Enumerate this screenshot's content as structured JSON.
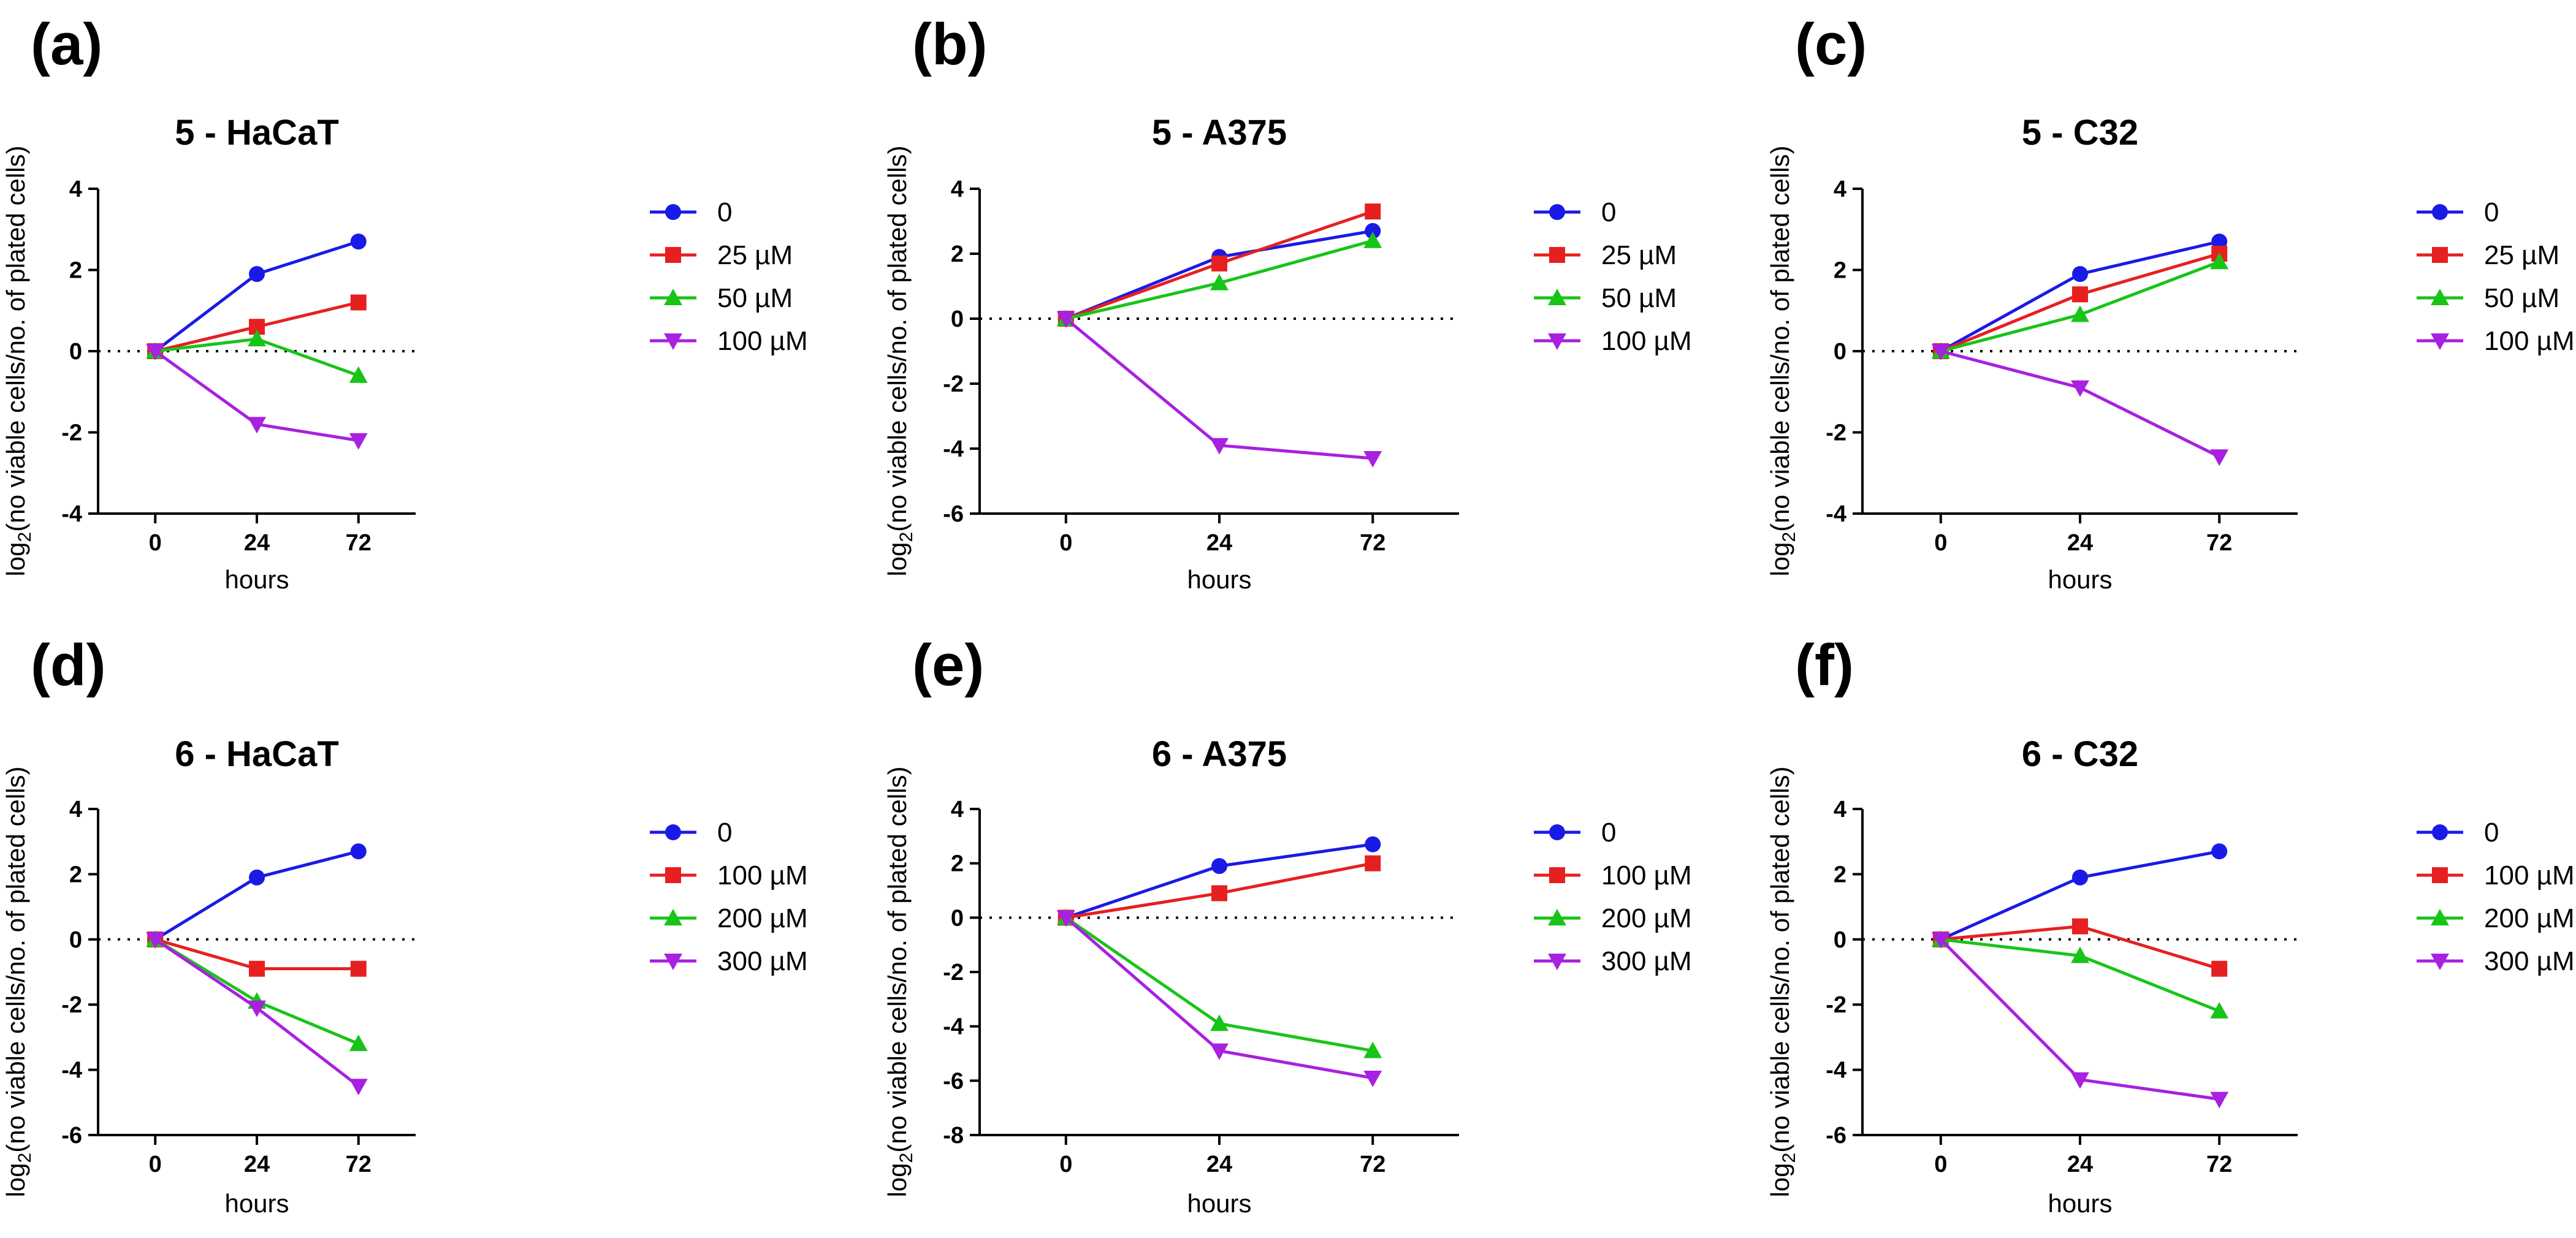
{
  "figure": {
    "description_domain": "multi-panel growth curves"
  },
  "colors": {
    "0": "#1a1ae6",
    "1": "#e62020",
    "2": "#18c418",
    "3": "#a820e0"
  },
  "markers": [
    "circle",
    "square",
    "triangle-up",
    "triangle-down"
  ],
  "chart_data": [
    {
      "panel": "(a)",
      "type": "line",
      "title": "5 - HaCaT",
      "xlabel": "hours",
      "ylabel": "log2(no viable cells/no. of plated cells)",
      "categories": [
        "0",
        "24",
        "72"
      ],
      "ylim": [
        -4,
        4
      ],
      "yticks": [
        4,
        2,
        0,
        -2,
        -4
      ],
      "series": [
        {
          "name": "0",
          "values": [
            0,
            1.9,
            2.7
          ]
        },
        {
          "name": "25 µM",
          "values": [
            0,
            0.6,
            1.2
          ]
        },
        {
          "name": "50  µM",
          "values": [
            0,
            0.3,
            -0.6
          ]
        },
        {
          "name": "100  µM",
          "values": [
            0,
            -1.8,
            -2.2
          ]
        }
      ]
    },
    {
      "panel": "(b)",
      "type": "line",
      "title": "5 - A375",
      "xlabel": "hours",
      "ylabel": "log2(no viable cells/no. of plated cells)",
      "categories": [
        "0",
        "24",
        "72"
      ],
      "ylim": [
        -6,
        4
      ],
      "yticks": [
        4,
        2,
        0,
        -2,
        -4,
        -6
      ],
      "series": [
        {
          "name": "0",
          "values": [
            0,
            1.9,
            2.7
          ]
        },
        {
          "name": "25 µM",
          "values": [
            0,
            1.7,
            3.3
          ]
        },
        {
          "name": "50  µM",
          "values": [
            0,
            1.1,
            2.4
          ]
        },
        {
          "name": "100  µM",
          "values": [
            0,
            -3.9,
            -4.3
          ]
        }
      ]
    },
    {
      "panel": "(c)",
      "type": "line",
      "title": "5 - C32",
      "xlabel": "hours",
      "ylabel": "log2(no viable cells/no. of plated cells)",
      "categories": [
        "0",
        "24",
        "72"
      ],
      "ylim": [
        -4,
        4
      ],
      "yticks": [
        4,
        2,
        0,
        -2,
        -4
      ],
      "series": [
        {
          "name": "0",
          "values": [
            0,
            1.9,
            2.7
          ]
        },
        {
          "name": "25 µM",
          "values": [
            0,
            1.4,
            2.4
          ]
        },
        {
          "name": "50  µM",
          "values": [
            0,
            0.9,
            2.2
          ]
        },
        {
          "name": "100  µM",
          "values": [
            0,
            -0.9,
            -2.6
          ]
        }
      ]
    },
    {
      "panel": "(d)",
      "type": "line",
      "title": "6 - HaCaT",
      "xlabel": "hours",
      "ylabel": "log2(no viable cells/no. of plated cells)",
      "categories": [
        "0",
        "24",
        "72"
      ],
      "ylim": [
        -6,
        4
      ],
      "yticks": [
        4,
        2,
        0,
        -2,
        -4,
        -6
      ],
      "series": [
        {
          "name": "0",
          "values": [
            0,
            1.9,
            2.7
          ]
        },
        {
          "name": "100  µM",
          "values": [
            0,
            -0.9,
            -0.9
          ]
        },
        {
          "name": "200  µM",
          "values": [
            0,
            -1.9,
            -3.2
          ]
        },
        {
          "name": "300  µM",
          "values": [
            0,
            -2.1,
            -4.5
          ]
        }
      ]
    },
    {
      "panel": "(e)",
      "type": "line",
      "title": "6 - A375",
      "xlabel": "hours",
      "ylabel": "log2(no viable cells/no. of plated cells)",
      "categories": [
        "0",
        "24",
        "72"
      ],
      "ylim": [
        -8,
        4
      ],
      "yticks": [
        4,
        2,
        0,
        -2,
        -4,
        -6,
        -8
      ],
      "series": [
        {
          "name": "0",
          "values": [
            0,
            1.9,
            2.7
          ]
        },
        {
          "name": "100  µM",
          "values": [
            0,
            0.9,
            2.0
          ]
        },
        {
          "name": "200  µM",
          "values": [
            0,
            -3.9,
            -4.9
          ]
        },
        {
          "name": "300  µM",
          "values": [
            0,
            -4.9,
            -5.9
          ]
        }
      ]
    },
    {
      "panel": "(f)",
      "type": "line",
      "title": "6 - C32",
      "xlabel": "hours",
      "ylabel": "log2(no viable cells/no. of plated cells)",
      "categories": [
        "0",
        "24",
        "72"
      ],
      "ylim": [
        -6,
        4
      ],
      "yticks": [
        4,
        2,
        0,
        -2,
        -4,
        -6
      ],
      "series": [
        {
          "name": "0",
          "values": [
            0,
            1.9,
            2.7
          ]
        },
        {
          "name": "100  µM",
          "values": [
            0,
            0.4,
            -0.9
          ]
        },
        {
          "name": "200  µM",
          "values": [
            0,
            -0.5,
            -2.2
          ]
        },
        {
          "name": "300  µM",
          "values": [
            0,
            -4.3,
            -4.9
          ]
        }
      ]
    }
  ]
}
